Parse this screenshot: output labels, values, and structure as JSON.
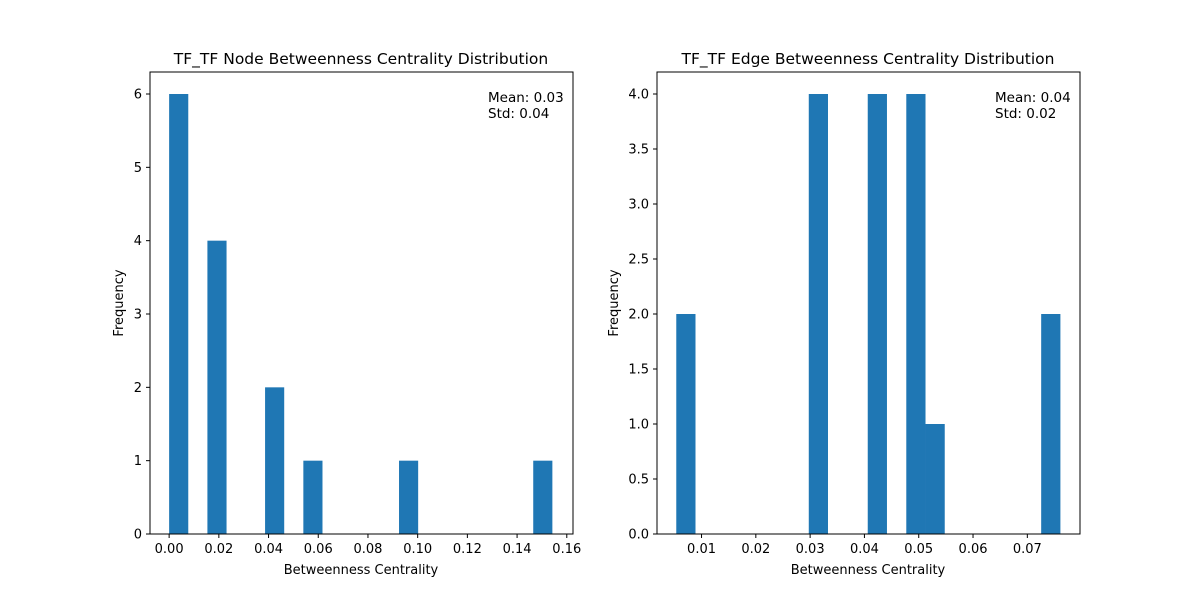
{
  "chart_data": [
    {
      "type": "bar",
      "title": "TF_TF Node Betweenness Centrality Distribution",
      "xlabel": "Betweenness Centrality",
      "ylabel": "Frequency",
      "xlim": [
        -0.0077,
        0.1625
      ],
      "ylim": [
        0,
        6.3
      ],
      "x_ticks": [
        0.0,
        0.02,
        0.04,
        0.06,
        0.08,
        0.1,
        0.12,
        0.14,
        0.16
      ],
      "x_tick_labels": [
        "0.00",
        "0.02",
        "0.04",
        "0.06",
        "0.08",
        "0.10",
        "0.12",
        "0.14",
        "0.16"
      ],
      "y_ticks": [
        0,
        1,
        2,
        3,
        4,
        5,
        6
      ],
      "y_tick_labels": [
        "0",
        "1",
        "2",
        "3",
        "4",
        "5",
        "6"
      ],
      "bar_width": 0.0077,
      "bars": [
        {
          "x_start": 0.0,
          "value": 6
        },
        {
          "x_start": 0.0154,
          "value": 4
        },
        {
          "x_start": 0.0386,
          "value": 2
        },
        {
          "x_start": 0.054,
          "value": 1
        },
        {
          "x_start": 0.0925,
          "value": 1
        },
        {
          "x_start": 0.1465,
          "value": 1
        }
      ],
      "stats": {
        "mean": "Mean: 0.03",
        "std": "Std: 0.04"
      },
      "color": "#1f77b4",
      "grid": false,
      "legend": "none"
    },
    {
      "type": "bar",
      "title": "TF_TF Edge Betweenness Centrality Distribution",
      "xlabel": "Betweenness Centrality",
      "ylabel": "Frequency",
      "xlim": [
        0.0018,
        0.0797
      ],
      "ylim": [
        0,
        4.2
      ],
      "x_ticks": [
        0.01,
        0.02,
        0.03,
        0.04,
        0.05,
        0.06,
        0.07
      ],
      "x_tick_labels": [
        "0.01",
        "0.02",
        "0.03",
        "0.04",
        "0.05",
        "0.06",
        "0.07"
      ],
      "y_ticks": [
        0.0,
        0.5,
        1.0,
        1.5,
        2.0,
        2.5,
        3.0,
        3.5,
        4.0
      ],
      "y_tick_labels": [
        "0.0",
        "0.5",
        "1.0",
        "1.5",
        "2.0",
        "2.5",
        "3.0",
        "3.5",
        "4.0"
      ],
      "bar_width": 0.00354,
      "bars": [
        {
          "x_start": 0.00535,
          "value": 2
        },
        {
          "x_start": 0.02975,
          "value": 4
        },
        {
          "x_start": 0.04061,
          "value": 4
        },
        {
          "x_start": 0.04771,
          "value": 4
        },
        {
          "x_start": 0.05125,
          "value": 1
        },
        {
          "x_start": 0.07255,
          "value": 2
        }
      ],
      "stats": {
        "mean": "Mean: 0.04",
        "std": "Std: 0.02"
      },
      "color": "#1f77b4",
      "grid": false,
      "legend": "none"
    }
  ]
}
